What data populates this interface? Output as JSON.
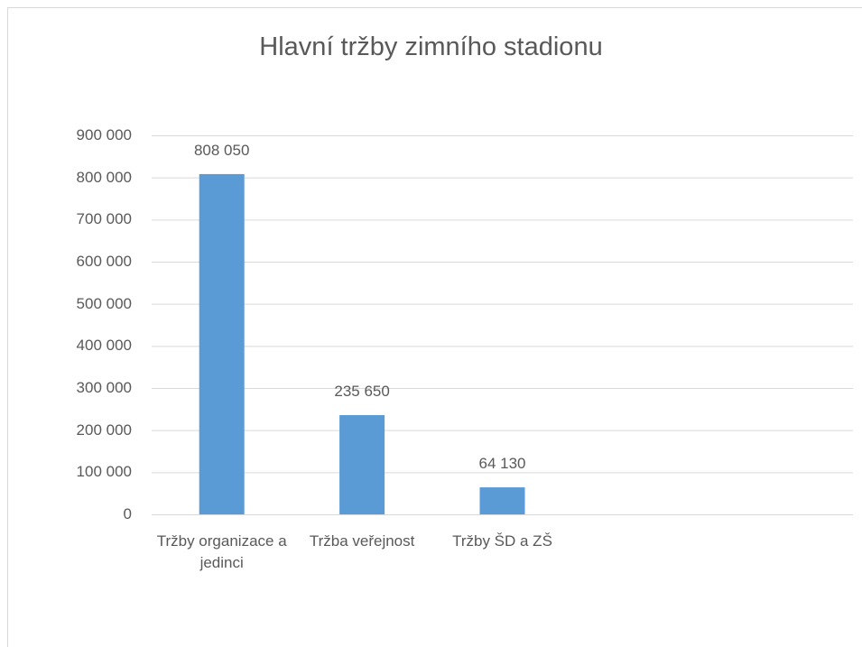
{
  "chart_data": {
    "type": "bar",
    "title": "Hlavní tržby zimního stadionu",
    "categories": [
      "Tržby organizace a jedinci",
      "Tržba veřejnost",
      "Tržby ŠD a ZŠ",
      null,
      null
    ],
    "values": [
      808050,
      235650,
      64130,
      null,
      null
    ],
    "value_labels": [
      "808 050",
      "235 650",
      "64 130",
      null,
      null
    ],
    "color": "#5b9bd5",
    "ylim": [
      0,
      900000
    ],
    "yticks": [
      0,
      {
        "value": 100000,
        "label": "100 000"
      },
      {
        "value": 200000,
        "label": "200 000"
      },
      {
        "value": 300000,
        "label": "300 000"
      },
      {
        "value": 400000,
        "label": "400 000"
      },
      {
        "value": 500000,
        "label": "500 000"
      },
      {
        "value": 600000,
        "label": "600 000"
      },
      {
        "value": 700000,
        "label": "700 000"
      },
      {
        "value": 800000,
        "label": "800 000"
      },
      {
        "value": 900000,
        "label": "900 000"
      }
    ],
    "grid": true
  }
}
